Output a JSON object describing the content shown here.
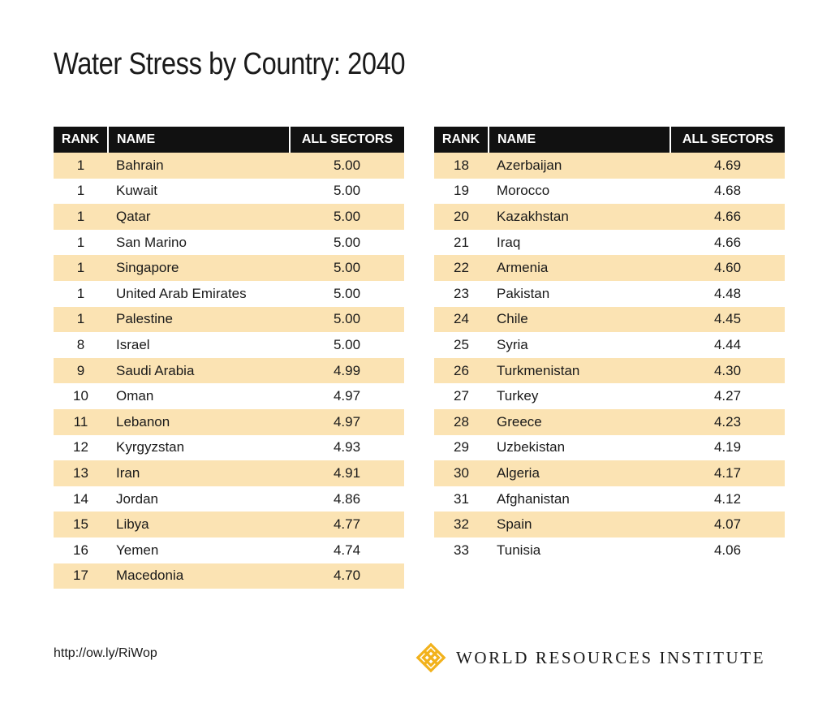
{
  "title": "Water Stress by Country: 2040",
  "headers": {
    "rank": "RANK",
    "name": "NAME",
    "value": "ALL SECTORS"
  },
  "chart_data": {
    "type": "table",
    "title": "Water Stress by Country: 2040",
    "columns": [
      "RANK",
      "NAME",
      "ALL SECTORS"
    ],
    "rows": [
      [
        "1",
        "Bahrain",
        "5.00"
      ],
      [
        "1",
        "Kuwait",
        "5.00"
      ],
      [
        "1",
        "Qatar",
        "5.00"
      ],
      [
        "1",
        "San Marino",
        "5.00"
      ],
      [
        "1",
        "Singapore",
        "5.00"
      ],
      [
        "1",
        "United Arab Emirates",
        "5.00"
      ],
      [
        "1",
        "Palestine",
        "5.00"
      ],
      [
        "8",
        "Israel",
        "5.00"
      ],
      [
        "9",
        "Saudi Arabia",
        "4.99"
      ],
      [
        "10",
        "Oman",
        "4.97"
      ],
      [
        "11",
        "Lebanon",
        "4.97"
      ],
      [
        "12",
        "Kyrgyzstan",
        "4.93"
      ],
      [
        "13",
        "Iran",
        "4.91"
      ],
      [
        "14",
        "Jordan",
        "4.86"
      ],
      [
        "15",
        "Libya",
        "4.77"
      ],
      [
        "16",
        "Yemen",
        "4.74"
      ],
      [
        "17",
        "Macedonia",
        "4.70"
      ],
      [
        "18",
        "Azerbaijan",
        "4.69"
      ],
      [
        "19",
        "Morocco",
        "4.68"
      ],
      [
        "20",
        "Kazakhstan",
        "4.66"
      ],
      [
        "21",
        "Iraq",
        "4.66"
      ],
      [
        "22",
        "Armenia",
        "4.60"
      ],
      [
        "23",
        "Pakistan",
        "4.48"
      ],
      [
        "24",
        "Chile",
        "4.45"
      ],
      [
        "25",
        "Syria",
        "4.44"
      ],
      [
        "26",
        "Turkmenistan",
        "4.30"
      ],
      [
        "27",
        "Turkey",
        "4.27"
      ],
      [
        "28",
        "Greece",
        "4.23"
      ],
      [
        "29",
        "Uzbekistan",
        "4.19"
      ],
      [
        "30",
        "Algeria",
        "4.17"
      ],
      [
        "31",
        "Afghanistan",
        "4.12"
      ],
      [
        "32",
        "Spain",
        "4.07"
      ],
      [
        "33",
        "Tunisia",
        "4.06"
      ]
    ]
  },
  "footer": {
    "url": "http://ow.ly/RiWop",
    "org": "WORLD RESOURCES INSTITUTE"
  },
  "colors": {
    "header_bg": "#111111",
    "row_shade": "#fbe3b3",
    "logo_gold": "#f2b21c"
  }
}
